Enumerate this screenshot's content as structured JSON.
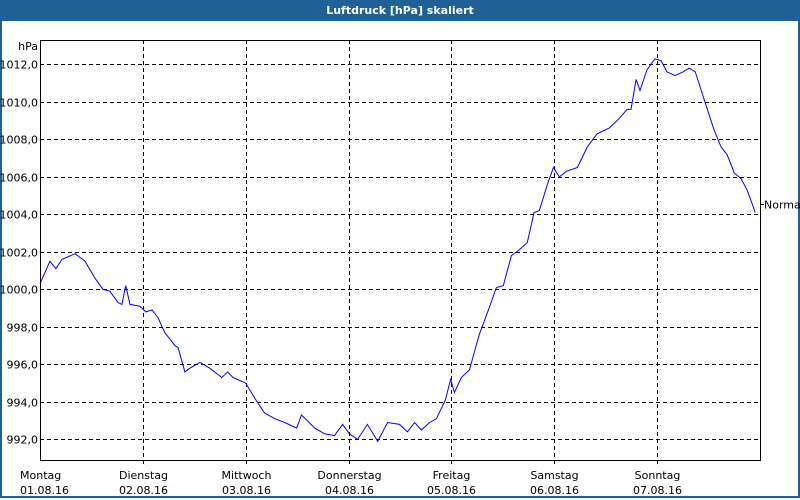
{
  "window": {
    "title": "Luftdruck [hPa] skaliert"
  },
  "chart_data": {
    "type": "line",
    "title": "Luftdruck [hPa] skaliert",
    "ylabel": "hPa",
    "ylim": [
      990.9,
      1013.3
    ],
    "xlim_hours": [
      0,
      168
    ],
    "grid": true,
    "yticks": [
      992,
      994,
      996,
      998,
      1000,
      1002,
      1004,
      1006,
      1008,
      1010,
      1012
    ],
    "ytick_labels": [
      "992,0",
      "994,0",
      "996,0",
      "998,0",
      "1000,0",
      "1002,0",
      "1004,0",
      "1006,0",
      "1008,0",
      "1010,0",
      "1012,0"
    ],
    "xticks": [
      {
        "day": "Montag",
        "date": "01.08.16"
      },
      {
        "day": "Dienstag",
        "date": "02.08.16"
      },
      {
        "day": "Mittwoch",
        "date": "03.08.16"
      },
      {
        "day": "Donnerstag",
        "date": "04.08.16"
      },
      {
        "day": "Freitag",
        "date": "05.08.16"
      },
      {
        "day": "Samstag",
        "date": "06.08.16"
      },
      {
        "day": "Sonntag",
        "date": "07.08.16"
      }
    ],
    "series": [
      {
        "name": "Normal",
        "color": "#0000ff",
        "hours": [
          0,
          2.3,
          3.7,
          5.1,
          8.2,
          10.5,
          12.8,
          14.7,
          16.3,
          18.2,
          19.1,
          20,
          21,
          23.3,
          24.7,
          26.1,
          27.5,
          29.1,
          31.5,
          32.2,
          33.8,
          35,
          37.3,
          39.6,
          42.4,
          43.8,
          45,
          48,
          50.1,
          52.4,
          54.8,
          57.1,
          59.9,
          61,
          62.4,
          64.1,
          66.4,
          68.7,
          70.6,
          72.2,
          74.1,
          76.4,
          78.8,
          81.1,
          83.9,
          85.7,
          87.4,
          89,
          90.9,
          92.5,
          94.6,
          95.8,
          96.7,
          98.3,
          100.2,
          102.5,
          104.8,
          106.5,
          108.1,
          110,
          111.8,
          113.7,
          115.3,
          116.5,
          118.4,
          119.8,
          121.2,
          122.8,
          125.4,
          127.7,
          130,
          132.8,
          135.1,
          137,
          137.9,
          139.1,
          140,
          141.6,
          143.5,
          144.9,
          146.3,
          148.2,
          150,
          151.5,
          152.9,
          155,
          157.3,
          158.9,
          160.3,
          162,
          163.6,
          165,
          166.9
        ],
        "values": [
          1000.3,
          1001.5,
          1001.1,
          1001.6,
          1001.9,
          1001.5,
          1000.6,
          1000,
          999.9,
          999.3,
          999.2,
          1000.2,
          999.2,
          999.1,
          998.8,
          998.9,
          998.5,
          997.7,
          997,
          996.9,
          995.6,
          995.8,
          996.1,
          995.8,
          995.3,
          995.6,
          995.3,
          995,
          994.2,
          993.4,
          993.1,
          992.9,
          992.6,
          993.3,
          993,
          992.6,
          992.3,
          992.2,
          992.8,
          992.3,
          992,
          992.8,
          991.9,
          992.9,
          992.8,
          992.4,
          992.9,
          992.5,
          992.9,
          993.1,
          994.1,
          995.2,
          994.5,
          995.3,
          995.7,
          997.6,
          999,
          1000.1,
          1000.2,
          1001.8,
          1002.1,
          1002.5,
          1004.1,
          1004.2,
          1005.6,
          1006.5,
          1006,
          1006.3,
          1006.5,
          1007.6,
          1008.3,
          1008.6,
          1009.1,
          1009.6,
          1009.6,
          1011.2,
          1010.6,
          1011.7,
          1012.3,
          1012.2,
          1011.6,
          1011.4,
          1011.6,
          1011.8,
          1011.6,
          1010.1,
          1008.5,
          1007.6,
          1007.2,
          1006.2,
          1005.9,
          1005.3,
          1004.1
        ]
      }
    ]
  }
}
